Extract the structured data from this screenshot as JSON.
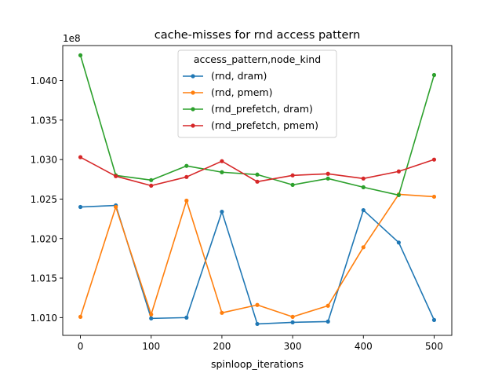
{
  "chart_data": {
    "type": "line",
    "title": "cache-misses for rnd access pattern",
    "xlabel": "spinloop_iterations",
    "ylabel": "",
    "y_offset_label": "1e8",
    "x": [
      0,
      50,
      100,
      150,
      200,
      250,
      300,
      350,
      400,
      450,
      500
    ],
    "xticks": [
      "0",
      "100",
      "200",
      "300",
      "400",
      "500"
    ],
    "xtick_values": [
      0,
      100,
      200,
      300,
      400,
      500
    ],
    "yticks": [
      "1.010",
      "1.015",
      "1.020",
      "1.025",
      "1.030",
      "1.035",
      "1.040"
    ],
    "ytick_values": [
      1.01,
      1.015,
      1.02,
      1.025,
      1.03,
      1.035,
      1.04
    ],
    "xlim": [
      -25,
      525
    ],
    "ylim": [
      1.00775,
      1.04443
    ],
    "grid": false,
    "legend": {
      "title": "access_pattern,node_kind",
      "placement": "upper center"
    },
    "series": [
      {
        "name": "(rnd, dram)",
        "color": "#1f77b4",
        "values": [
          1.024,
          1.0242,
          1.0099,
          1.01,
          1.0234,
          1.0092,
          1.0094,
          1.0095,
          1.0236,
          1.0195,
          1.0097
        ]
      },
      {
        "name": "(rnd, pmem)",
        "color": "#ff7f0e",
        "values": [
          1.0101,
          1.024,
          1.0104,
          1.0248,
          1.0106,
          1.0116,
          1.0101,
          1.0115,
          1.0189,
          1.0256,
          1.0253
        ]
      },
      {
        "name": "(rnd_prefetch, dram)",
        "color": "#2ca02c",
        "values": [
          1.0432,
          1.028,
          1.0274,
          1.0292,
          1.0284,
          1.0281,
          1.0268,
          1.0276,
          1.0265,
          1.0255,
          1.0407
        ]
      },
      {
        "name": "(rnd_prefetch, pmem)",
        "color": "#d62728",
        "values": [
          1.0303,
          1.0279,
          1.0267,
          1.0278,
          1.0298,
          1.0272,
          1.028,
          1.0282,
          1.0276,
          1.0285,
          1.03
        ]
      }
    ]
  }
}
